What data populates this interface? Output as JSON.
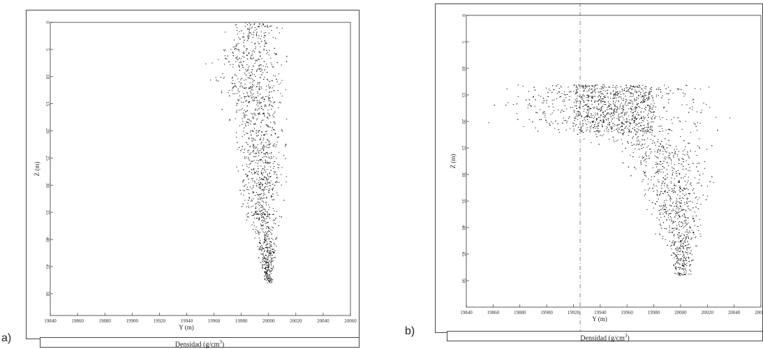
{
  "figure": {
    "panels": [
      {
        "letter": "a)",
        "caption": "Densidad (g/cm",
        "caption_sup": "3",
        "caption_end": ")"
      },
      {
        "letter": "b)",
        "caption": "Densidad (g/cm",
        "caption_sup": "3",
        "caption_end": ")"
      }
    ]
  },
  "chart_data": [
    {
      "type": "scatter",
      "panel": "a",
      "xlabel": "Y (m)",
      "ylabel": "Z (m)",
      "xlim": [
        19840,
        20060
      ],
      "ylim": [
        0,
        54
      ],
      "y_inverted": true,
      "x_ticks": [
        "19840",
        "19860",
        "19880",
        "19900",
        "19920",
        "19940",
        "19960",
        "19980",
        "20000",
        "20020",
        "20040",
        "20060"
      ],
      "y_ticks": [
        "0",
        "5",
        "10",
        "15",
        "20",
        "25",
        "30",
        "35",
        "40",
        "45",
        "50"
      ],
      "grid": false,
      "cloud": {
        "description_free": true,
        "envelope": [
          {
            "z": 0,
            "y_min": 19975,
            "y_max": 20010
          },
          {
            "z": 2,
            "y_min": 19962,
            "y_max": 20020
          },
          {
            "z": 5,
            "y_min": 19950,
            "y_max": 20022
          },
          {
            "z": 10,
            "y_min": 19950,
            "y_max": 20023
          },
          {
            "z": 15,
            "y_min": 19962,
            "y_max": 20020
          },
          {
            "z": 20,
            "y_min": 19968,
            "y_max": 20018
          },
          {
            "z": 25,
            "y_min": 19970,
            "y_max": 20018
          },
          {
            "z": 30,
            "y_min": 19972,
            "y_max": 20016
          },
          {
            "z": 35,
            "y_min": 19978,
            "y_max": 20013
          },
          {
            "z": 40,
            "y_min": 19986,
            "y_max": 20010
          },
          {
            "z": 45,
            "y_min": 19993,
            "y_max": 20005
          },
          {
            "z": 48,
            "y_min": 19996,
            "y_max": 20004
          }
        ],
        "point_count": 1400
      }
    },
    {
      "type": "scatter",
      "panel": "b",
      "xlabel": "Y (m)",
      "ylabel": "Z (m)",
      "xlim": [
        19840,
        20060
      ],
      "ylim": [
        0,
        55
      ],
      "y_inverted": true,
      "x_ticks": [
        "19840",
        "19860",
        "19880",
        "19900",
        "19920",
        "19940",
        "19960",
        "19980",
        "20000",
        "20020",
        "20040",
        "20060"
      ],
      "y_ticks": [
        "0",
        "5",
        "10",
        "15",
        "20",
        "25",
        "30",
        "35",
        "40",
        "45",
        "50"
      ],
      "grid": false,
      "reference_lines": {
        "vertical_dashed_y": 19925
      },
      "cloud": {
        "envelope": [
          {
            "z": 13,
            "y_min": 19845,
            "y_max": 20045
          },
          {
            "z": 17,
            "y_min": 19842,
            "y_max": 20050
          },
          {
            "z": 20,
            "y_min": 19845,
            "y_max": 20045
          },
          {
            "z": 22,
            "y_min": 19870,
            "y_max": 20040
          },
          {
            "z": 25,
            "y_min": 19940,
            "y_max": 20030
          },
          {
            "z": 30,
            "y_min": 19955,
            "y_max": 20030
          },
          {
            "z": 35,
            "y_min": 19965,
            "y_max": 20025
          },
          {
            "z": 40,
            "y_min": 19975,
            "y_max": 20022
          },
          {
            "z": 45,
            "y_min": 19988,
            "y_max": 20015
          },
          {
            "z": 49,
            "y_min": 19993,
            "y_max": 20010
          }
        ],
        "point_count": 1900
      }
    }
  ]
}
